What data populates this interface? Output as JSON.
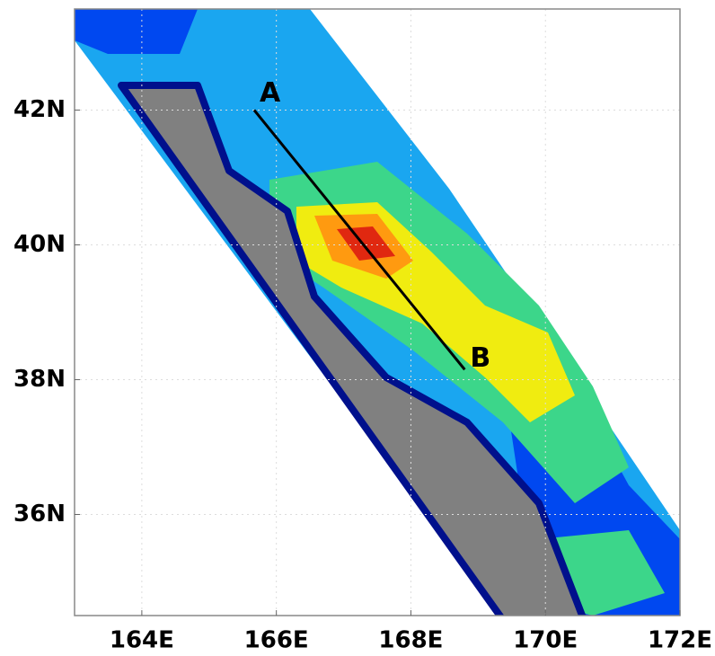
{
  "chart_data": {
    "type": "map",
    "xlim": [
      163,
      172
    ],
    "ylim": [
      34.5,
      43.5
    ],
    "xticks": [
      {
        "value": 164,
        "label": "164E"
      },
      {
        "value": 166,
        "label": "166E"
      },
      {
        "value": 168,
        "label": "168E"
      },
      {
        "value": 170,
        "label": "170E"
      },
      {
        "value": 172,
        "label": "172E"
      }
    ],
    "yticks": [
      {
        "value": 36,
        "label": "36N"
      },
      {
        "value": 38,
        "label": "38N"
      },
      {
        "value": 40,
        "label": "40N"
      },
      {
        "value": 42,
        "label": "42N"
      }
    ],
    "grid": true,
    "cross_section": {
      "start": {
        "label": "A",
        "lon": 165.67,
        "lat": 42.0
      },
      "end": {
        "label": "B",
        "lon": 168.8,
        "lat": 38.15
      }
    }
  }
}
